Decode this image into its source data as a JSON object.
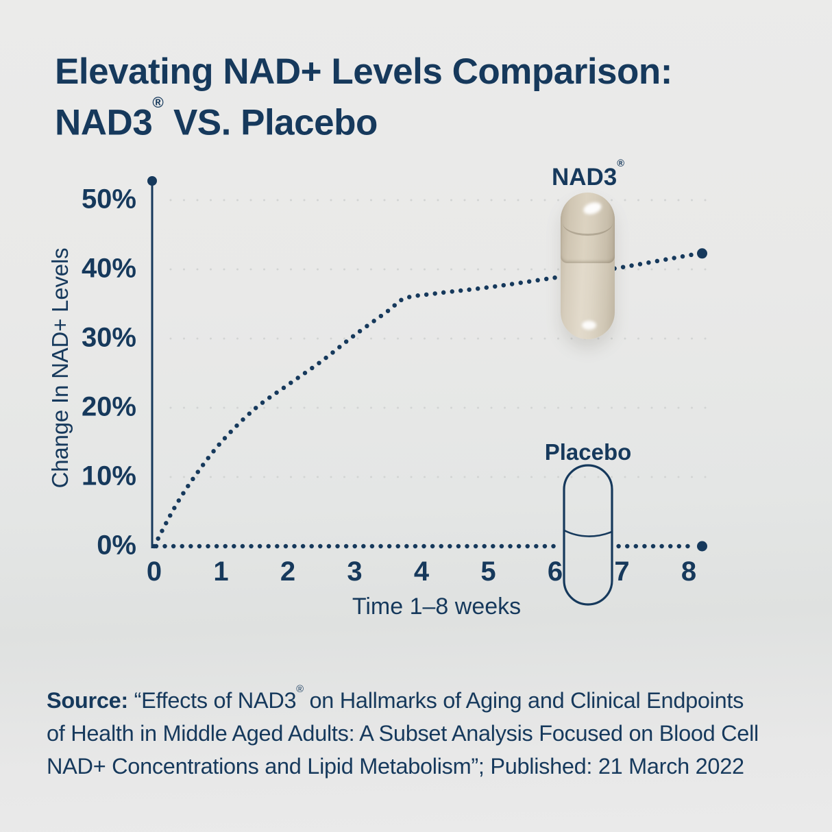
{
  "page_title": {
    "line1": "Elevating NAD+ Levels Comparison:",
    "line2_product": "NAD3",
    "line2_reg": "®",
    "line2_rest": " VS. Placebo"
  },
  "chart_data": {
    "type": "line",
    "title": "",
    "xlabel": "Time 1–8 weeks",
    "ylabel": "Change In NAD+ Levels",
    "x_tick_labels": [
      "0",
      "1",
      "2",
      "3",
      "4",
      "5",
      "6",
      "7",
      "8"
    ],
    "y_tick_labels": [
      "0%",
      "10%",
      "20%",
      "30%",
      "40%",
      "50%"
    ],
    "xlim_weeks": [
      0,
      8.4
    ],
    "ylim_percent": [
      0,
      53
    ],
    "grid": {
      "horizontal_dotted": true,
      "levels_percent": [
        10,
        20,
        30,
        40,
        50
      ]
    },
    "legend_position": "inline capsule icons with labels",
    "series": [
      {
        "name": "NAD3®",
        "line_style": "dotted",
        "color": "#16395c",
        "x_weeks": [
          0,
          1,
          2,
          3,
          4,
          5,
          6,
          7,
          8
        ],
        "values_percent": [
          0,
          15,
          23,
          30.5,
          36,
          37.4,
          38.8,
          40.3,
          42
        ],
        "end_point": {
          "x_week": 8.2,
          "value_percent": 42.3
        },
        "curve_points": [
          [
            0,
            0
          ],
          [
            0.3,
            5.5
          ],
          [
            0.6,
            10
          ],
          [
            1,
            15
          ],
          [
            1.5,
            19.8
          ],
          [
            2,
            23.3
          ],
          [
            2.5,
            26.7
          ],
          [
            3,
            30.5
          ],
          [
            3.5,
            34
          ],
          [
            3.75,
            35.8
          ],
          [
            4.2,
            36.5
          ],
          [
            5,
            37.4
          ],
          [
            6,
            38.8
          ],
          [
            7,
            40.3
          ],
          [
            8.1,
            42.2
          ]
        ]
      },
      {
        "name": "Placebo",
        "line_style": "dotted",
        "color": "#16395c",
        "x_weeks": [
          0,
          1,
          2,
          3,
          4,
          5,
          6,
          7,
          8
        ],
        "values_percent": [
          0,
          0,
          0,
          0,
          0,
          0,
          0,
          0,
          0
        ],
        "end_point": {
          "x_week": 8.2,
          "value_percent": 0
        },
        "gap_x_weeks": [
          6.0,
          6.95
        ]
      }
    ]
  },
  "annotations": {
    "nad3_label_product": "NAD3",
    "nad3_label_reg": "®",
    "placebo_label": "Placebo"
  },
  "source": {
    "prefix": "Source:",
    "line1_a": " “Effects of NAD3",
    "line1_reg": "®",
    "line1_b": " on Hallmarks of Aging and Clinical Endpoints",
    "line2": "of Health in Middle Aged Adults: A Subset Analysis Focused on Blood Cell",
    "line3": "NAD+ Concentrations and Lipid Metabolism”; Published: 21 March 2022"
  },
  "colors": {
    "navy": "#16395c",
    "background": "#e9e9e8",
    "gridline": "#d2d4d3",
    "capsule_beige": "#ded6c6"
  }
}
